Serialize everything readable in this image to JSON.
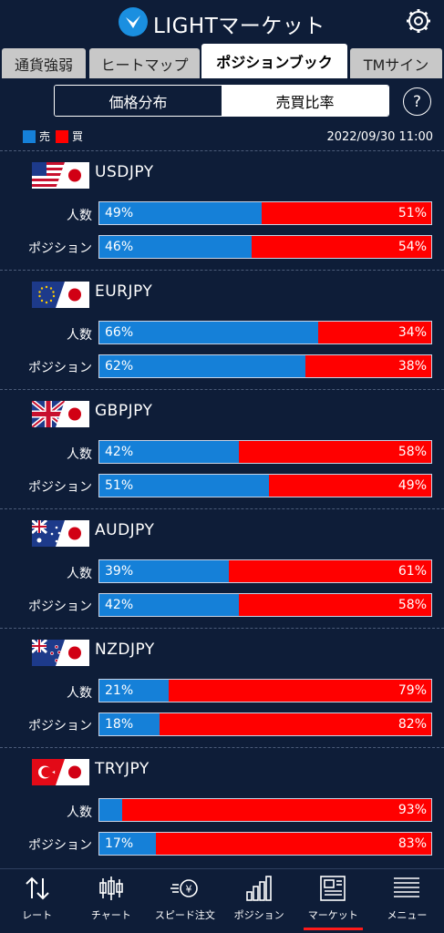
{
  "app": {
    "title": "LIGHTマーケット"
  },
  "tabs": [
    "通貨強弱",
    "ヒートマップ",
    "ポジションブック",
    "TMサイン"
  ],
  "active_tab": 2,
  "segment": {
    "options": [
      "価格分布",
      "売買比率"
    ],
    "selected": 1
  },
  "help": "?",
  "legend": {
    "sell_label": "売",
    "buy_label": "買",
    "sell_color": "#1580d8",
    "buy_color": "#ff0000"
  },
  "timestamp": "2022/09/30 11:00",
  "row_labels": {
    "people": "人数",
    "position": "ポジション"
  },
  "pairs": [
    {
      "name": "USDJPY",
      "base_flag": "us-flag",
      "people": {
        "sell": "49%",
        "buy": "51%",
        "sell_pct": 49
      },
      "position": {
        "sell": "46%",
        "buy": "54%",
        "sell_pct": 46
      }
    },
    {
      "name": "EURJPY",
      "base_flag": "eu-flag",
      "people": {
        "sell": "66%",
        "buy": "34%",
        "sell_pct": 66
      },
      "position": {
        "sell": "62%",
        "buy": "38%",
        "sell_pct": 62
      }
    },
    {
      "name": "GBPJPY",
      "base_flag": "uk-flag",
      "people": {
        "sell": "42%",
        "buy": "58%",
        "sell_pct": 42
      },
      "position": {
        "sell": "51%",
        "buy": "49%",
        "sell_pct": 51
      }
    },
    {
      "name": "AUDJPY",
      "base_flag": "au-flag",
      "people": {
        "sell": "39%",
        "buy": "61%",
        "sell_pct": 39
      },
      "position": {
        "sell": "42%",
        "buy": "58%",
        "sell_pct": 42
      }
    },
    {
      "name": "NZDJPY",
      "base_flag": "nz-flag",
      "people": {
        "sell": "21%",
        "buy": "79%",
        "sell_pct": 21
      },
      "position": {
        "sell": "18%",
        "buy": "82%",
        "sell_pct": 18
      }
    },
    {
      "name": "TRYJPY",
      "base_flag": "tr-flag",
      "people": {
        "sell": "",
        "buy": "93%",
        "sell_pct": 7
      },
      "position": {
        "sell": "17%",
        "buy": "83%",
        "sell_pct": 17
      }
    }
  ],
  "bottom_nav": {
    "items": [
      "レート",
      "チャート",
      "スピード注文",
      "ポジション",
      "マーケット",
      "メニュー"
    ],
    "icons": [
      "rate-arrows-icon",
      "candlestick-icon",
      "speed-order-icon",
      "position-bars-icon",
      "newspaper-icon",
      "menu-lines-icon"
    ],
    "active": 4
  }
}
